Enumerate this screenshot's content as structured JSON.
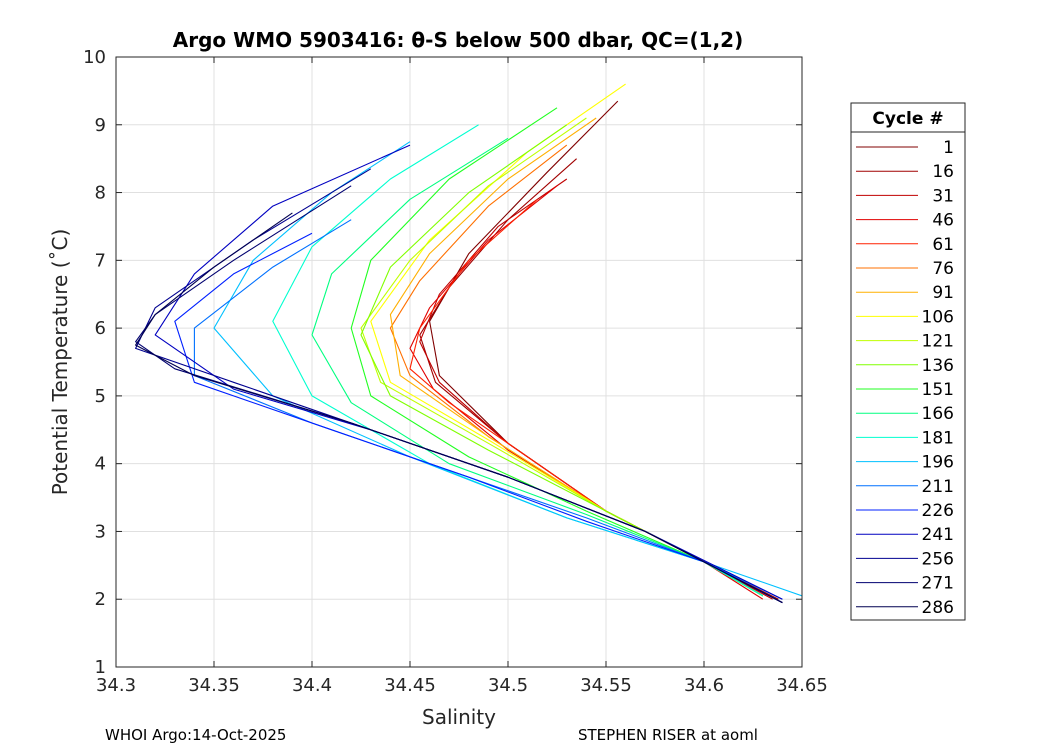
{
  "chart_data": {
    "type": "line",
    "title": "Argo WMO 5903416: θ-S below 500 dbar,  QC=(1,2)",
    "xlabel": "Salinity",
    "ylabel": "Potential Temperature (˚C)",
    "xlim": [
      34.3,
      34.65
    ],
    "ylim": [
      1,
      10
    ],
    "x_ticks": [
      34.3,
      34.35,
      34.4,
      34.45,
      34.5,
      34.55,
      34.6,
      34.65
    ],
    "x_tick_labels": [
      "34.3",
      "34.35",
      "34.4",
      "34.45",
      "34.5",
      "34.55",
      "34.6",
      "34.65"
    ],
    "y_ticks": [
      1,
      2,
      3,
      4,
      5,
      6,
      7,
      8,
      9,
      10
    ],
    "y_tick_labels": [
      "1",
      "2",
      "3",
      "4",
      "5",
      "6",
      "7",
      "8",
      "9",
      "10"
    ],
    "grid": true,
    "legend_title": "Cycle #",
    "legend_position": "right",
    "series": [
      {
        "name": "1",
        "color": "#800000",
        "points": [
          [
            34.556,
            9.35
          ],
          [
            34.52,
            8.3
          ],
          [
            34.48,
            7.1
          ],
          [
            34.46,
            6.1
          ],
          [
            34.465,
            5.3
          ],
          [
            34.5,
            4.3
          ],
          [
            34.55,
            3.3
          ],
          [
            34.6,
            2.55
          ],
          [
            34.64,
            1.95
          ]
        ]
      },
      {
        "name": "16",
        "color": "#a00000",
        "points": [
          [
            34.535,
            8.5
          ],
          [
            34.5,
            7.6
          ],
          [
            34.47,
            6.6
          ],
          [
            34.455,
            5.9
          ],
          [
            34.463,
            5.2
          ],
          [
            34.5,
            4.3
          ],
          [
            34.55,
            3.3
          ],
          [
            34.6,
            2.55
          ],
          [
            34.638,
            2.0
          ]
        ]
      },
      {
        "name": "31",
        "color": "#c00000",
        "points": [
          [
            34.53,
            8.2
          ],
          [
            34.495,
            7.5
          ],
          [
            34.465,
            6.5
          ],
          [
            34.455,
            5.8
          ],
          [
            34.465,
            5.2
          ],
          [
            34.5,
            4.3
          ],
          [
            34.55,
            3.3
          ],
          [
            34.6,
            2.55
          ],
          [
            34.635,
            2.0
          ]
        ]
      },
      {
        "name": "46",
        "color": "#e00000",
        "points": [
          [
            34.525,
            8.1
          ],
          [
            34.49,
            7.3
          ],
          [
            34.46,
            6.3
          ],
          [
            34.45,
            5.7
          ],
          [
            34.462,
            5.1
          ],
          [
            34.5,
            4.2
          ],
          [
            34.55,
            3.3
          ],
          [
            34.6,
            2.55
          ],
          [
            34.63,
            2.0
          ]
        ]
      },
      {
        "name": "61",
        "color": "#ff2000",
        "points": [
          [
            34.515,
            7.9
          ],
          [
            34.48,
            7.0
          ],
          [
            34.455,
            6.0
          ],
          [
            34.45,
            5.4
          ],
          [
            34.47,
            4.9
          ],
          [
            34.505,
            4.2
          ],
          [
            34.55,
            3.3
          ],
          [
            34.6,
            2.55
          ],
          [
            34.63,
            2.05
          ]
        ]
      },
      {
        "name": "76",
        "color": "#ff7000",
        "points": [
          [
            34.53,
            8.7
          ],
          [
            34.49,
            7.8
          ],
          [
            34.455,
            6.7
          ],
          [
            34.44,
            6.0
          ],
          [
            34.45,
            5.3
          ],
          [
            34.49,
            4.4
          ],
          [
            34.55,
            3.3
          ],
          [
            34.6,
            2.55
          ],
          [
            34.63,
            2.05
          ]
        ]
      },
      {
        "name": "91",
        "color": "#ffb000",
        "points": [
          [
            34.545,
            9.1
          ],
          [
            34.5,
            8.2
          ],
          [
            34.46,
            7.1
          ],
          [
            34.44,
            6.2
          ],
          [
            34.445,
            5.3
          ],
          [
            34.49,
            4.4
          ],
          [
            34.55,
            3.3
          ],
          [
            34.6,
            2.55
          ],
          [
            34.63,
            2.05
          ]
        ]
      },
      {
        "name": "106",
        "color": "#ffff00",
        "points": [
          [
            34.56,
            9.6
          ],
          [
            34.51,
            8.6
          ],
          [
            34.46,
            7.3
          ],
          [
            34.43,
            6.1
          ],
          [
            34.44,
            5.2
          ],
          [
            34.49,
            4.35
          ],
          [
            34.55,
            3.3
          ],
          [
            34.6,
            2.55
          ],
          [
            34.63,
            2.05
          ]
        ]
      },
      {
        "name": "121",
        "color": "#c0ff00",
        "points": [
          [
            34.54,
            9.1
          ],
          [
            34.49,
            8.1
          ],
          [
            34.45,
            7.0
          ],
          [
            34.425,
            6.0
          ],
          [
            34.435,
            5.2
          ],
          [
            34.49,
            4.3
          ],
          [
            34.55,
            3.3
          ],
          [
            34.6,
            2.55
          ],
          [
            34.63,
            2.05
          ]
        ]
      },
      {
        "name": "136",
        "color": "#80ff00",
        "points": [
          [
            34.53,
            9.0
          ],
          [
            34.48,
            8.0
          ],
          [
            34.44,
            6.9
          ],
          [
            34.425,
            5.9
          ],
          [
            34.44,
            5.0
          ],
          [
            34.49,
            4.2
          ],
          [
            34.55,
            3.3
          ],
          [
            34.6,
            2.55
          ],
          [
            34.63,
            2.05
          ]
        ]
      },
      {
        "name": "151",
        "color": "#20ff20",
        "points": [
          [
            34.525,
            9.25
          ],
          [
            34.47,
            8.2
          ],
          [
            34.43,
            7.0
          ],
          [
            34.42,
            6.0
          ],
          [
            34.43,
            5.0
          ],
          [
            34.48,
            4.1
          ],
          [
            34.54,
            3.3
          ],
          [
            34.6,
            2.55
          ],
          [
            34.63,
            2.05
          ]
        ]
      },
      {
        "name": "166",
        "color": "#00ff80",
        "points": [
          [
            34.5,
            8.8
          ],
          [
            34.45,
            7.9
          ],
          [
            34.41,
            6.8
          ],
          [
            34.4,
            5.9
          ],
          [
            34.42,
            4.9
          ],
          [
            34.47,
            4.0
          ],
          [
            34.54,
            3.25
          ],
          [
            34.6,
            2.55
          ],
          [
            34.63,
            2.05
          ]
        ]
      },
      {
        "name": "181",
        "color": "#00ffd0",
        "points": [
          [
            34.485,
            9.0
          ],
          [
            34.44,
            8.2
          ],
          [
            34.4,
            7.2
          ],
          [
            34.38,
            6.1
          ],
          [
            34.4,
            5.0
          ],
          [
            34.46,
            4.0
          ],
          [
            34.53,
            3.2
          ],
          [
            34.6,
            2.55
          ],
          [
            34.63,
            2.05
          ]
        ]
      },
      {
        "name": "196",
        "color": "#00c0ff",
        "points": [
          [
            34.45,
            8.75
          ],
          [
            34.41,
            8.0
          ],
          [
            34.37,
            7.0
          ],
          [
            34.35,
            6.0
          ],
          [
            34.38,
            5.0
          ],
          [
            34.45,
            4.1
          ],
          [
            34.53,
            3.2
          ],
          [
            34.6,
            2.55
          ],
          [
            34.65,
            2.05
          ]
        ]
      },
      {
        "name": "211",
        "color": "#0070ff",
        "points": [
          [
            34.42,
            7.6
          ],
          [
            34.38,
            6.9
          ],
          [
            34.34,
            6.0
          ],
          [
            34.34,
            5.3
          ],
          [
            34.4,
            4.6
          ],
          [
            34.47,
            3.9
          ],
          [
            34.54,
            3.2
          ],
          [
            34.6,
            2.55
          ],
          [
            34.64,
            2.0
          ]
        ]
      },
      {
        "name": "226",
        "color": "#0020ff",
        "points": [
          [
            34.4,
            7.4
          ],
          [
            34.36,
            6.8
          ],
          [
            34.33,
            6.1
          ],
          [
            34.34,
            5.2
          ],
          [
            34.41,
            4.5
          ],
          [
            34.48,
            3.8
          ],
          [
            34.54,
            3.15
          ],
          [
            34.6,
            2.55
          ],
          [
            34.64,
            1.95
          ]
        ]
      },
      {
        "name": "241",
        "color": "#0000c0",
        "points": [
          [
            34.45,
            8.7
          ],
          [
            34.38,
            7.8
          ],
          [
            34.34,
            6.8
          ],
          [
            34.32,
            5.9
          ],
          [
            34.36,
            5.1
          ],
          [
            34.43,
            4.5
          ],
          [
            34.5,
            3.8
          ],
          [
            34.57,
            3.0
          ],
          [
            34.64,
            2.0
          ]
        ]
      },
      {
        "name": "256",
        "color": "#000090",
        "points": [
          [
            34.43,
            8.35
          ],
          [
            34.37,
            7.3
          ],
          [
            34.32,
            6.3
          ],
          [
            34.31,
            5.7
          ],
          [
            34.36,
            5.2
          ],
          [
            34.43,
            4.5
          ],
          [
            34.5,
            3.8
          ],
          [
            34.57,
            3.0
          ],
          [
            34.64,
            1.95
          ]
        ]
      },
      {
        "name": "271",
        "color": "#000070",
        "points": [
          [
            34.42,
            8.1
          ],
          [
            34.36,
            7.0
          ],
          [
            34.32,
            6.2
          ],
          [
            34.31,
            5.8
          ],
          [
            34.33,
            5.4
          ],
          [
            34.42,
            4.6
          ],
          [
            34.5,
            3.8
          ],
          [
            34.57,
            3.0
          ],
          [
            34.64,
            1.95
          ]
        ]
      },
      {
        "name": "286",
        "color": "#000050",
        "points": [
          [
            34.39,
            7.7
          ],
          [
            34.35,
            6.9
          ],
          [
            34.32,
            6.2
          ],
          [
            34.31,
            5.75
          ],
          [
            34.34,
            5.3
          ],
          [
            34.42,
            4.6
          ],
          [
            34.5,
            3.8
          ],
          [
            34.57,
            3.0
          ],
          [
            34.64,
            1.95
          ]
        ]
      }
    ]
  },
  "footer": {
    "left": "WHOI Argo:14-Oct-2025",
    "right": "STEPHEN RISER at aoml"
  }
}
